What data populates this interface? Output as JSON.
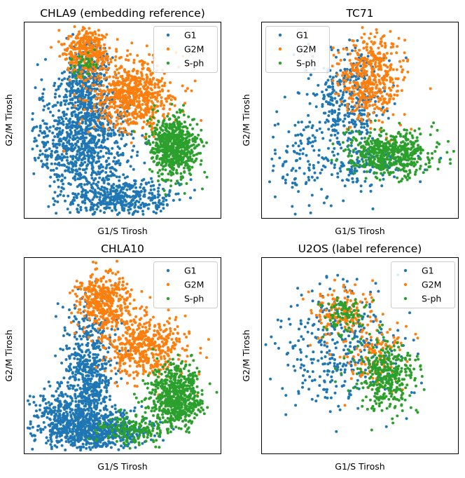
{
  "colors": {
    "G1": "#1f77b4",
    "G2M": "#ff7f0e",
    "S-ph": "#2ca02c"
  },
  "chart_data": [
    {
      "type": "scatter",
      "title": "CHLA9 (embedding reference)",
      "xlabel": "G1/S Tirosh",
      "ylabel": "G2/M Tirosh",
      "ticks": "hidden",
      "grid": false,
      "legend": "top-right",
      "series": [
        {
          "name": "G1",
          "color": "#1f77b4",
          "count": 1700,
          "clusters": [
            {
              "x": 0.3,
              "y": 0.4,
              "sx": 0.12,
              "sy": 0.14,
              "w": 0.55
            },
            {
              "x": 0.32,
              "y": 0.7,
              "sx": 0.06,
              "sy": 0.09,
              "w": 0.2
            },
            {
              "x": 0.5,
              "y": 0.1,
              "sx": 0.14,
              "sy": 0.05,
              "w": 0.25
            }
          ]
        },
        {
          "name": "G2M",
          "color": "#ff7f0e",
          "count": 1000,
          "clusters": [
            {
              "x": 0.32,
              "y": 0.85,
              "sx": 0.06,
              "sy": 0.06,
              "w": 0.35
            },
            {
              "x": 0.55,
              "y": 0.62,
              "sx": 0.11,
              "sy": 0.09,
              "w": 0.65
            }
          ]
        },
        {
          "name": "S-ph",
          "color": "#2ca02c",
          "count": 750,
          "clusters": [
            {
              "x": 0.76,
              "y": 0.37,
              "sx": 0.06,
              "sy": 0.07,
              "w": 0.95
            },
            {
              "x": 0.3,
              "y": 0.78,
              "sx": 0.03,
              "sy": 0.03,
              "w": 0.05
            }
          ]
        }
      ]
    },
    {
      "type": "scatter",
      "title": "TC71",
      "xlabel": "G1/S Tirosh",
      "ylabel": "G2/M Tirosh",
      "ticks": "hidden",
      "grid": false,
      "legend": "top-left",
      "series": [
        {
          "name": "G1",
          "color": "#1f77b4",
          "count": 600,
          "clusters": [
            {
              "x": 0.43,
              "y": 0.6,
              "sx": 0.1,
              "sy": 0.13,
              "w": 0.6
            },
            {
              "x": 0.22,
              "y": 0.28,
              "sx": 0.1,
              "sy": 0.12,
              "w": 0.2
            },
            {
              "x": 0.53,
              "y": 0.27,
              "sx": 0.1,
              "sy": 0.06,
              "w": 0.2
            }
          ]
        },
        {
          "name": "G2M",
          "color": "#ff7f0e",
          "count": 450,
          "clusters": [
            {
              "x": 0.56,
              "y": 0.72,
              "sx": 0.08,
              "sy": 0.11,
              "w": 1.0
            }
          ]
        },
        {
          "name": "S-ph",
          "color": "#2ca02c",
          "count": 550,
          "clusters": [
            {
              "x": 0.65,
              "y": 0.33,
              "sx": 0.11,
              "sy": 0.06,
              "w": 1.0
            }
          ]
        }
      ]
    },
    {
      "type": "scatter",
      "title": "CHLA10",
      "xlabel": "G1/S Tirosh",
      "ylabel": "G2/M Tirosh",
      "ticks": "hidden",
      "grid": false,
      "legend": "top-right",
      "series": [
        {
          "name": "G1",
          "color": "#1f77b4",
          "count": 1500,
          "clusters": [
            {
              "x": 0.35,
              "y": 0.12,
              "sx": 0.14,
              "sy": 0.05,
              "w": 0.45
            },
            {
              "x": 0.33,
              "y": 0.4,
              "sx": 0.06,
              "sy": 0.17,
              "w": 0.4
            },
            {
              "x": 0.2,
              "y": 0.22,
              "sx": 0.08,
              "sy": 0.06,
              "w": 0.15
            }
          ]
        },
        {
          "name": "G2M",
          "color": "#ff7f0e",
          "count": 900,
          "clusters": [
            {
              "x": 0.4,
              "y": 0.78,
              "sx": 0.07,
              "sy": 0.07,
              "w": 0.45
            },
            {
              "x": 0.6,
              "y": 0.55,
              "sx": 0.11,
              "sy": 0.08,
              "w": 0.55
            }
          ]
        },
        {
          "name": "S-ph",
          "color": "#2ca02c",
          "count": 800,
          "clusters": [
            {
              "x": 0.77,
              "y": 0.3,
              "sx": 0.07,
              "sy": 0.08,
              "w": 0.8
            },
            {
              "x": 0.55,
              "y": 0.12,
              "sx": 0.08,
              "sy": 0.04,
              "w": 0.2
            }
          ]
        }
      ]
    },
    {
      "type": "scatter",
      "title": "U2OS (label reference)",
      "xlabel": "G1/S Tirosh",
      "ylabel": "G2/M Tirosh",
      "ticks": "hidden",
      "grid": false,
      "legend": "top-right",
      "series": [
        {
          "name": "G1",
          "color": "#1f77b4",
          "count": 350,
          "clusters": [
            {
              "x": 0.4,
              "y": 0.55,
              "sx": 0.16,
              "sy": 0.17,
              "w": 1.0
            }
          ]
        },
        {
          "name": "G2M",
          "color": "#ff7f0e",
          "count": 280,
          "clusters": [
            {
              "x": 0.4,
              "y": 0.72,
              "sx": 0.08,
              "sy": 0.07,
              "w": 0.55
            },
            {
              "x": 0.58,
              "y": 0.5,
              "sx": 0.08,
              "sy": 0.08,
              "w": 0.45
            }
          ]
        },
        {
          "name": "S-ph",
          "color": "#2ca02c",
          "count": 450,
          "clusters": [
            {
              "x": 0.63,
              "y": 0.4,
              "sx": 0.08,
              "sy": 0.09,
              "w": 0.8
            },
            {
              "x": 0.42,
              "y": 0.7,
              "sx": 0.06,
              "sy": 0.06,
              "w": 0.2
            }
          ]
        }
      ]
    }
  ]
}
